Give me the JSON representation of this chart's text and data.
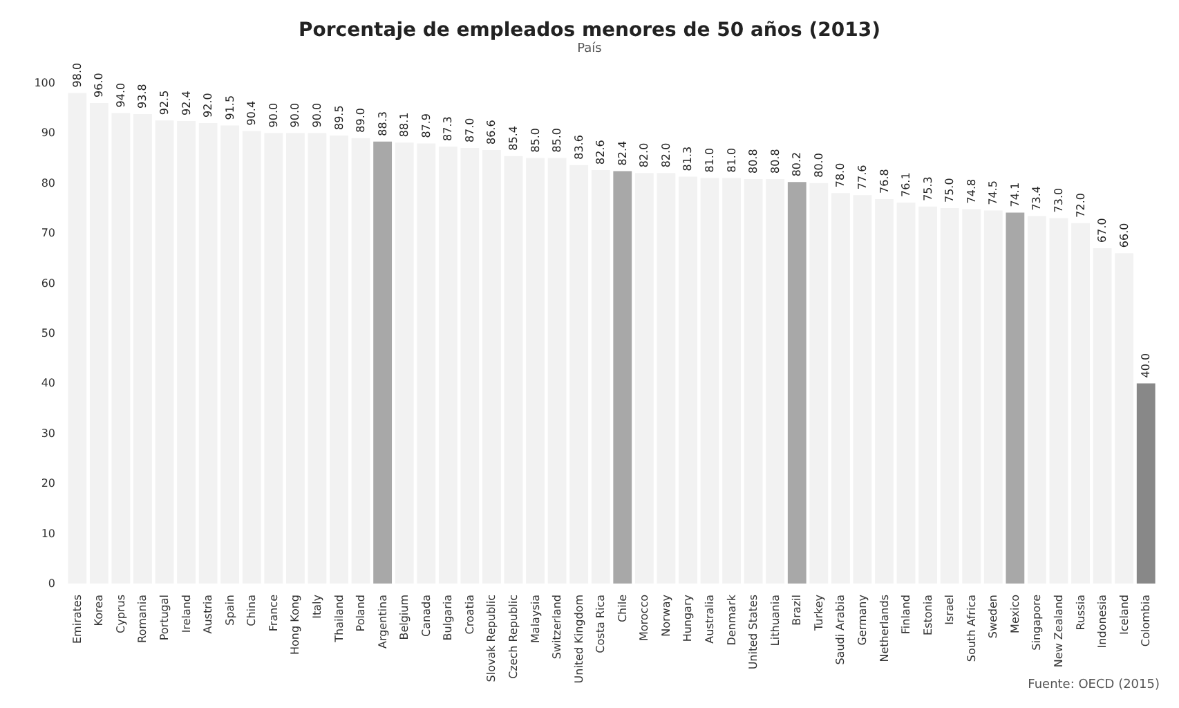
{
  "chart_data": {
    "type": "bar",
    "title": "Porcentaje de empleados menores de 50 años (2013)",
    "subtitle": "País",
    "annotations": [
      "Fuente: OECD (2015)"
    ],
    "categories": [
      "Emirates",
      "Korea",
      "Cyprus",
      "Romania",
      "Portugal",
      "Ireland",
      "Austria",
      "Spain",
      "China",
      "France",
      "Hong Kong",
      "Italy",
      "Thailand",
      "Poland",
      "Argentina",
      "Belgium",
      "Canada",
      "Bulgaria",
      "Croatia",
      "Slovak Republic",
      "Czech Republic",
      "Malaysia",
      "Switzerland",
      "United Kingdom",
      "Costa Rica",
      "Chile",
      "Morocco",
      "Norway",
      "Hungary",
      "Australia",
      "Denmark",
      "United States",
      "Lithuania",
      "Brazil",
      "Turkey",
      "Saudi Arabia",
      "Germany",
      "Netherlands",
      "Finland",
      "Estonia",
      "Israel",
      "South Africa",
      "Sweden",
      "Mexico",
      "Singapore",
      "New Zealand",
      "Russia",
      "Indonesia",
      "Iceland",
      "Colombia"
    ],
    "values": [
      98.0,
      96.0,
      94.0,
      93.8,
      92.5,
      92.4,
      92.0,
      91.5,
      90.4,
      90.0,
      90.0,
      90.0,
      89.5,
      89.0,
      88.3,
      88.1,
      87.9,
      87.3,
      87.0,
      86.6,
      85.4,
      85.0,
      85.0,
      83.6,
      82.6,
      82.4,
      82.0,
      82.0,
      81.3,
      81.0,
      81.0,
      80.8,
      80.8,
      80.2,
      80.0,
      78.0,
      77.6,
      76.8,
      76.1,
      75.3,
      75.0,
      74.8,
      74.5,
      74.1,
      73.4,
      73.0,
      72.0,
      67.0,
      66.0,
      40.0
    ],
    "colors": [
      "#f2f2f2",
      "#f2f2f2",
      "#f2f2f2",
      "#f2f2f2",
      "#f2f2f2",
      "#f2f2f2",
      "#f2f2f2",
      "#f2f2f2",
      "#f2f2f2",
      "#f2f2f2",
      "#f2f2f2",
      "#f2f2f2",
      "#f2f2f2",
      "#f2f2f2",
      "#a8a8a8",
      "#f2f2f2",
      "#f2f2f2",
      "#f2f2f2",
      "#f2f2f2",
      "#f2f2f2",
      "#f2f2f2",
      "#f2f2f2",
      "#f2f2f2",
      "#f2f2f2",
      "#f2f2f2",
      "#a8a8a8",
      "#f2f2f2",
      "#f2f2f2",
      "#f2f2f2",
      "#f2f2f2",
      "#f2f2f2",
      "#f2f2f2",
      "#f2f2f2",
      "#a8a8a8",
      "#f2f2f2",
      "#f2f2f2",
      "#f2f2f2",
      "#f2f2f2",
      "#f2f2f2",
      "#f2f2f2",
      "#f2f2f2",
      "#f2f2f2",
      "#f2f2f2",
      "#a8a8a8",
      "#f2f2f2",
      "#f2f2f2",
      "#f2f2f2",
      "#f2f2f2",
      "#f2f2f2",
      "#888888"
    ],
    "value_labels": [
      "98.0",
      "96.0",
      "94.0",
      "93.8",
      "92.5",
      "92.4",
      "92.0",
      "91.5",
      "90.4",
      "90.0",
      "90.0",
      "90.0",
      "89.5",
      "89.0",
      "88.3",
      "88.1",
      "87.9",
      "87.3",
      "87.0",
      "86.6",
      "85.4",
      "85.0",
      "85.0",
      "83.6",
      "82.6",
      "82.4",
      "82.0",
      "82.0",
      "81.3",
      "81.0",
      "81.0",
      "80.8",
      "80.8",
      "80.2",
      "80.0",
      "78.0",
      "77.6",
      "76.8",
      "76.1",
      "75.3",
      "75.0",
      "74.8",
      "74.5",
      "74.1",
      "73.4",
      "73.0",
      "72.0",
      "67.0",
      "66.0",
      "40.0"
    ],
    "ylim": [
      0,
      100
    ],
    "yticks": [
      0,
      10,
      20,
      30,
      40,
      50,
      60,
      70,
      80,
      90,
      100
    ],
    "grid": false
  }
}
